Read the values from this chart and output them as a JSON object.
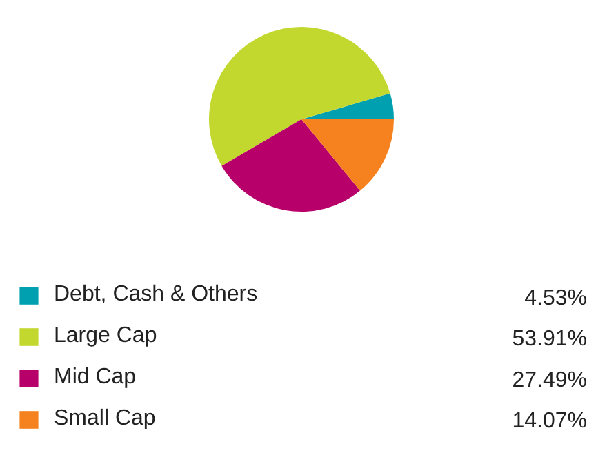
{
  "chart_data": {
    "type": "pie",
    "categories": [
      "Debt, Cash & Others",
      "Large Cap",
      "Mid Cap",
      "Small Cap"
    ],
    "values": [
      4.53,
      53.91,
      27.49,
      14.07
    ],
    "colors": [
      "#00a0b0",
      "#c2d82e",
      "#b8006b",
      "#f5821f"
    ],
    "value_labels": [
      "4.53%",
      "53.91%",
      "27.49%",
      "14.07%"
    ],
    "legend": "bottom"
  }
}
